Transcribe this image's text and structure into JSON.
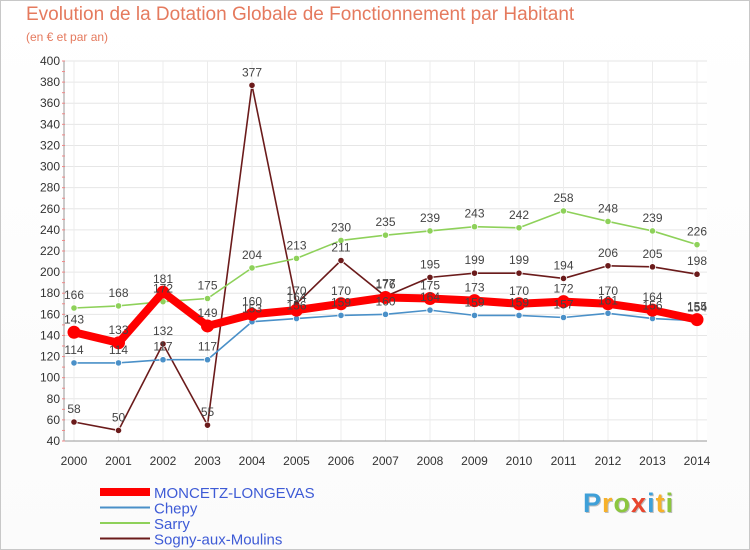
{
  "header": {
    "title": "Evolution de la Dotation Globale de Fonctionnement par Habitant",
    "subtitle": "(en € et par an)"
  },
  "logo": {
    "text": "Proxiti",
    "colors": [
      "#3fa0d8",
      "#f7b12a",
      "#8cc63f",
      "#e8462e"
    ]
  },
  "chart_data": {
    "type": "line",
    "x": [
      2000,
      2001,
      2002,
      2003,
      2004,
      2005,
      2006,
      2007,
      2008,
      2009,
      2010,
      2011,
      2012,
      2013,
      2014
    ],
    "ylim": [
      40,
      400
    ],
    "ytick_step": 20,
    "grid": true,
    "legend_position": "bottom-left",
    "series": [
      {
        "name": "Sogny-aux-Moulins",
        "color": "#6b1b1b",
        "values": [
          58,
          50,
          132,
          55,
          377,
          170,
          211,
          177,
          195,
          199,
          199,
          194,
          206,
          205,
          198
        ]
      },
      {
        "name": "Sarry",
        "color": "#8ed15a",
        "values": [
          166,
          168,
          172,
          175,
          204,
          213,
          230,
          235,
          239,
          243,
          242,
          258,
          248,
          239,
          226
        ]
      },
      {
        "name": "Chepy",
        "color": "#4a90c8",
        "values": [
          114,
          114,
          117,
          117,
          153,
          156,
          159,
          160,
          164,
          159,
          159,
          157,
          161,
          156,
          154
        ]
      },
      {
        "name": "MONCETZ-LONGEVAS",
        "color": "#ff0000",
        "values": [
          143,
          133,
          181,
          149,
          160,
          164,
          170,
          176,
          175,
          173,
          170,
          172,
          170,
          164,
          155
        ]
      }
    ]
  }
}
